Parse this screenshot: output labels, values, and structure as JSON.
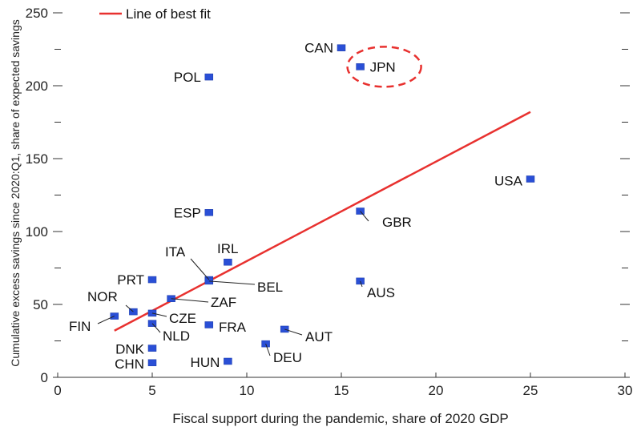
{
  "chart_data": {
    "type": "scatter",
    "xlabel": "Fiscal support during the pandemic, share of 2020 GDP",
    "ylabel": "Cumulative excess savings since 2020:Q1, share of expected savings",
    "xlim": [
      0,
      30
    ],
    "ylim": [
      0,
      250
    ],
    "x_ticks": [
      0,
      5,
      10,
      15,
      20,
      25,
      30
    ],
    "y_ticks": [
      0,
      50,
      100,
      150,
      200,
      250
    ],
    "grid": false,
    "legend": {
      "position": "top-left",
      "entries": [
        "Line of best fit"
      ]
    },
    "fit_line": {
      "name": "Line of best fit",
      "color": "#e8312f",
      "x": [
        3,
        25
      ],
      "y": [
        32,
        182
      ]
    },
    "highlight": {
      "label": "JPN",
      "style": "dashed-ellipse",
      "color": "#e8312f"
    },
    "marker_color": "#2a4fd6",
    "points": [
      {
        "label": "CAN",
        "x": 15,
        "y": 226
      },
      {
        "label": "JPN",
        "x": 16,
        "y": 213
      },
      {
        "label": "POL",
        "x": 8,
        "y": 206
      },
      {
        "label": "USA",
        "x": 25,
        "y": 136
      },
      {
        "label": "ESP",
        "x": 8,
        "y": 113
      },
      {
        "label": "GBR",
        "x": 16,
        "y": 114
      },
      {
        "label": "IRL",
        "x": 9,
        "y": 79
      },
      {
        "label": "ITA",
        "x": 8,
        "y": 67
      },
      {
        "label": "BEL",
        "x": 8,
        "y": 66
      },
      {
        "label": "PRT",
        "x": 5,
        "y": 67
      },
      {
        "label": "AUS",
        "x": 16,
        "y": 66
      },
      {
        "label": "ZAF",
        "x": 6,
        "y": 54
      },
      {
        "label": "NOR",
        "x": 4,
        "y": 45
      },
      {
        "label": "CZE",
        "x": 5,
        "y": 44
      },
      {
        "label": "FIN",
        "x": 3,
        "y": 42
      },
      {
        "label": "NLD",
        "x": 5,
        "y": 37
      },
      {
        "label": "FRA",
        "x": 8,
        "y": 36
      },
      {
        "label": "AUT",
        "x": 12,
        "y": 33
      },
      {
        "label": "DEU",
        "x": 11,
        "y": 23
      },
      {
        "label": "DNK",
        "x": 5,
        "y": 20
      },
      {
        "label": "HUN",
        "x": 9,
        "y": 11
      },
      {
        "label": "CHN",
        "x": 5,
        "y": 10
      }
    ]
  }
}
